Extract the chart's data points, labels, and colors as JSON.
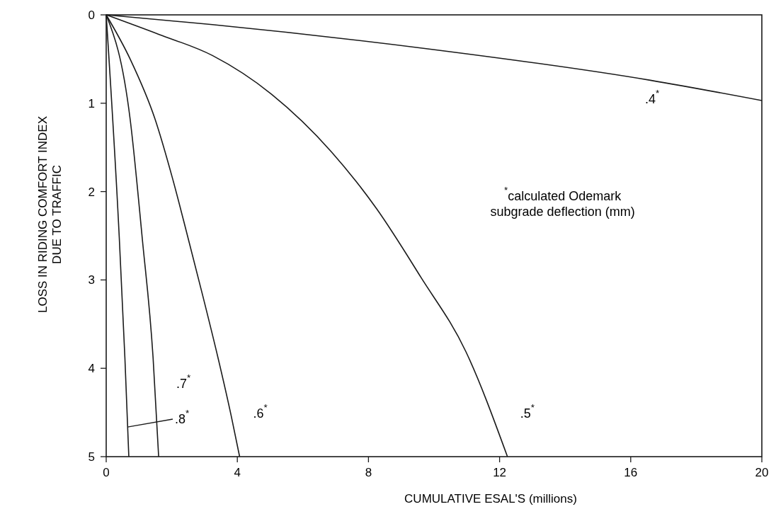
{
  "chart_data": {
    "type": "line",
    "xlabel": "CUMULATIVE ESAL'S (millions)",
    "ylabel": "LOSS IN RIDING COMFORT INDEX DUE TO TRAFFIC",
    "xlim": [
      0,
      20
    ],
    "ylim": [
      5,
      0
    ],
    "xticks": [
      0,
      4,
      8,
      12,
      16,
      20
    ],
    "yticks": [
      0,
      1,
      2,
      3,
      4,
      5
    ],
    "grid": false,
    "marker": "none",
    "line_style": "solid",
    "series": [
      {
        "name": ".4$^{*}$",
        "color": "#1a1a1a",
        "x": [
          0,
          3.24,
          9.72,
          16.6,
          20
        ],
        "values": [
          0,
          0.11,
          0.38,
          0.74,
          0.97
        ]
      },
      {
        "name": ".5$^{*}$",
        "color": "#1a1a1a",
        "x": [
          0,
          1.6,
          3.24,
          5.05,
          6.87,
          8.24,
          9.6,
          10.97,
          12.24
        ],
        "values": [
          0,
          0.22,
          0.46,
          0.9,
          1.55,
          2.19,
          2.97,
          3.81,
          5
        ]
      },
      {
        "name": ".6$^{*}$",
        "color": "#1a1a1a",
        "x": [
          0,
          0.73,
          1.49,
          2.03,
          2.5,
          2.96,
          3.41,
          3.82,
          4.07
        ],
        "values": [
          0,
          0.5,
          1.18,
          1.86,
          2.53,
          3.2,
          3.88,
          4.55,
          5
        ]
      },
      {
        "name": ".7$^{*}$",
        "color": "#1a1a1a",
        "x": [
          0,
          0.73,
          1.1,
          1.43,
          1.6
        ],
        "values": [
          0,
          1.18,
          2.53,
          3.88,
          5
        ]
      },
      {
        "name": ".8$^{*}$",
        "color": "#1a1a1a",
        "x": [
          0,
          0.4,
          0.57,
          0.69
        ],
        "values": [
          0,
          2.53,
          3.88,
          5
        ]
      }
    ],
    "annotations": [
      "$^{*}$calculated Odemark subgrade deflection (mm)"
    ]
  }
}
